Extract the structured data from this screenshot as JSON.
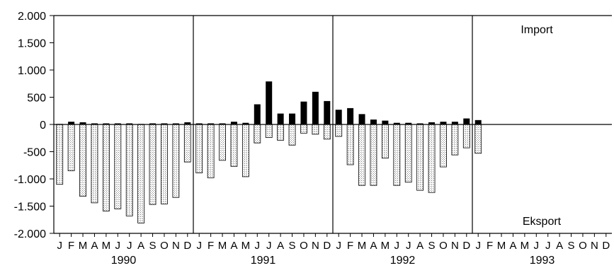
{
  "chart_data": {
    "type": "bar",
    "ylim": [
      -2000,
      2000
    ],
    "y_ticks": [
      2000,
      1500,
      1000,
      500,
      0,
      -500,
      -1000,
      -1500,
      -2000
    ],
    "y_tick_labels": [
      "2.000",
      "1.500",
      "1.000",
      "500",
      "0",
      "-500",
      "-1.000",
      "-1.500",
      "-2.000"
    ],
    "years": [
      "1990",
      "1991",
      "1992",
      "1993"
    ],
    "month_labels": [
      "J",
      "F",
      "M",
      "A",
      "M",
      "J",
      "J",
      "A",
      "S",
      "O",
      "N",
      "D"
    ],
    "series_labels": {
      "import": "Import",
      "export": "Eksport"
    },
    "colors": {
      "import": "#000000",
      "export_fill": "#d4d4d4",
      "export_stroke": "#000000",
      "axis": "#000000"
    },
    "series": [
      {
        "name": "Import",
        "values": [
          10,
          50,
          40,
          20,
          20,
          20,
          20,
          10,
          20,
          20,
          20,
          40,
          20,
          20,
          20,
          50,
          30,
          370,
          790,
          200,
          200,
          420,
          600,
          430,
          270,
          300,
          190,
          90,
          70,
          30,
          30,
          20,
          40,
          50,
          50,
          110,
          80
        ]
      },
      {
        "name": "Eksport",
        "values": [
          -1100,
          -850,
          -1320,
          -1440,
          -1590,
          -1550,
          -1680,
          -1810,
          -1470,
          -1460,
          -1340,
          -690,
          -890,
          -980,
          -660,
          -770,
          -960,
          -340,
          -240,
          -290,
          -380,
          -160,
          -180,
          -270,
          -220,
          -740,
          -1120,
          -1120,
          -620,
          -1120,
          -1060,
          -1210,
          -1250,
          -780,
          -560,
          -430,
          -530
        ]
      }
    ]
  }
}
